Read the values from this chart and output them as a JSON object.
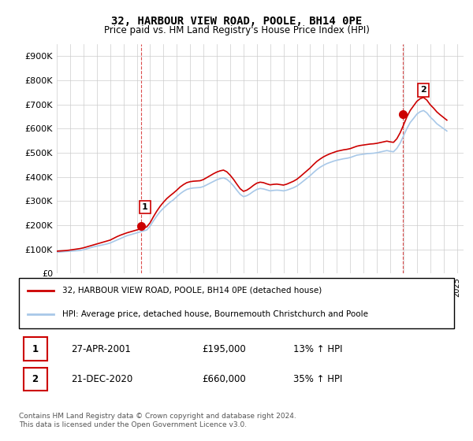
{
  "title": "32, HARBOUR VIEW ROAD, POOLE, BH14 0PE",
  "subtitle": "Price paid vs. HM Land Registry's House Price Index (HPI)",
  "ylim": [
    0,
    950000
  ],
  "yticks": [
    0,
    100000,
    200000,
    300000,
    400000,
    500000,
    600000,
    700000,
    800000,
    900000
  ],
  "ytick_labels": [
    "£0",
    "£100K",
    "£200K",
    "£300K",
    "£400K",
    "£500K",
    "£600K",
    "£700K",
    "£800K",
    "£900K"
  ],
  "sale1": {
    "date": 2001.32,
    "price": 195000,
    "label": "1",
    "pct": "13%",
    "direction": "↑"
  },
  "sale2": {
    "date": 2020.97,
    "price": 660000,
    "label": "2",
    "pct": "35%",
    "direction": "↑"
  },
  "legend_line1": "32, HARBOUR VIEW ROAD, POOLE, BH14 0PE (detached house)",
  "legend_line2": "HPI: Average price, detached house, Bournemouth Christchurch and Poole",
  "table_row1": [
    "1",
    "27-APR-2001",
    "£195,000",
    "13% ↑ HPI"
  ],
  "table_row2": [
    "2",
    "21-DEC-2020",
    "£660,000",
    "35% ↑ HPI"
  ],
  "footnote1": "Contains HM Land Registry data © Crown copyright and database right 2024.",
  "footnote2": "This data is licensed under the Open Government Licence v3.0.",
  "hpi_color": "#a8c8e8",
  "price_color": "#cc0000",
  "background_color": "#ffffff",
  "grid_color": "#cccccc",
  "hpi_data": {
    "years": [
      1995.0,
      1995.25,
      1995.5,
      1995.75,
      1996.0,
      1996.25,
      1996.5,
      1996.75,
      1997.0,
      1997.25,
      1997.5,
      1997.75,
      1998.0,
      1998.25,
      1998.5,
      1998.75,
      1999.0,
      1999.25,
      1999.5,
      1999.75,
      2000.0,
      2000.25,
      2000.5,
      2000.75,
      2001.0,
      2001.25,
      2001.5,
      2001.75,
      2002.0,
      2002.25,
      2002.5,
      2002.75,
      2003.0,
      2003.25,
      2003.5,
      2003.75,
      2004.0,
      2004.25,
      2004.5,
      2004.75,
      2005.0,
      2005.25,
      2005.5,
      2005.75,
      2006.0,
      2006.25,
      2006.5,
      2006.75,
      2007.0,
      2007.25,
      2007.5,
      2007.75,
      2008.0,
      2008.25,
      2008.5,
      2008.75,
      2009.0,
      2009.25,
      2009.5,
      2009.75,
      2010.0,
      2010.25,
      2010.5,
      2010.75,
      2011.0,
      2011.25,
      2011.5,
      2011.75,
      2012.0,
      2012.25,
      2012.5,
      2012.75,
      2013.0,
      2013.25,
      2013.5,
      2013.75,
      2014.0,
      2014.25,
      2014.5,
      2014.75,
      2015.0,
      2015.25,
      2015.5,
      2015.75,
      2016.0,
      2016.25,
      2016.5,
      2016.75,
      2017.0,
      2017.25,
      2017.5,
      2017.75,
      2018.0,
      2018.25,
      2018.5,
      2018.75,
      2019.0,
      2019.25,
      2019.5,
      2019.75,
      2020.0,
      2020.25,
      2020.5,
      2020.75,
      2021.0,
      2021.25,
      2021.5,
      2021.75,
      2022.0,
      2022.25,
      2022.5,
      2022.75,
      2023.0,
      2023.25,
      2023.5,
      2023.75,
      2024.0,
      2024.25
    ],
    "values": [
      88000,
      89000,
      90000,
      91000,
      92000,
      93000,
      94000,
      95000,
      98000,
      102000,
      106000,
      110000,
      113000,
      116000,
      119000,
      122000,
      126000,
      132000,
      138000,
      144000,
      150000,
      156000,
      160000,
      164000,
      168000,
      172000,
      176000,
      180000,
      196000,
      218000,
      238000,
      256000,
      270000,
      283000,
      295000,
      305000,
      318000,
      330000,
      340000,
      348000,
      352000,
      354000,
      355000,
      356000,
      360000,
      367000,
      374000,
      381000,
      388000,
      393000,
      396000,
      390000,
      378000,
      363000,
      345000,
      328000,
      318000,
      322000,
      330000,
      340000,
      348000,
      352000,
      350000,
      346000,
      342000,
      344000,
      345000,
      344000,
      342000,
      345000,
      350000,
      355000,
      362000,
      372000,
      383000,
      394000,
      405000,
      418000,
      430000,
      440000,
      448000,
      455000,
      460000,
      465000,
      469000,
      472000,
      475000,
      477000,
      480000,
      485000,
      490000,
      492000,
      494000,
      496000,
      497000,
      498000,
      500000,
      503000,
      506000,
      509000,
      506000,
      504000,
      518000,
      540000,
      570000,
      600000,
      625000,
      642000,
      660000,
      670000,
      675000,
      665000,
      648000,
      635000,
      620000,
      610000,
      600000,
      590000
    ]
  },
  "price_data": {
    "years": [
      1995.0,
      1995.25,
      1995.5,
      1995.75,
      1996.0,
      1996.25,
      1996.5,
      1996.75,
      1997.0,
      1997.25,
      1997.5,
      1997.75,
      1998.0,
      1998.25,
      1998.5,
      1998.75,
      1999.0,
      1999.25,
      1999.5,
      1999.75,
      2000.0,
      2000.25,
      2000.5,
      2000.75,
      2001.0,
      2001.25,
      2001.5,
      2001.75,
      2002.0,
      2002.25,
      2002.5,
      2002.75,
      2003.0,
      2003.25,
      2003.5,
      2003.75,
      2004.0,
      2004.25,
      2004.5,
      2004.75,
      2005.0,
      2005.25,
      2005.5,
      2005.75,
      2006.0,
      2006.25,
      2006.5,
      2006.75,
      2007.0,
      2007.25,
      2007.5,
      2007.75,
      2008.0,
      2008.25,
      2008.5,
      2008.75,
      2009.0,
      2009.25,
      2009.5,
      2009.75,
      2010.0,
      2010.25,
      2010.5,
      2010.75,
      2011.0,
      2011.25,
      2011.5,
      2011.75,
      2012.0,
      2012.25,
      2012.5,
      2012.75,
      2013.0,
      2013.25,
      2013.5,
      2013.75,
      2014.0,
      2014.25,
      2014.5,
      2014.75,
      2015.0,
      2015.25,
      2015.5,
      2015.75,
      2016.0,
      2016.25,
      2016.5,
      2016.75,
      2017.0,
      2017.25,
      2017.5,
      2017.75,
      2018.0,
      2018.25,
      2018.5,
      2018.75,
      2019.0,
      2019.25,
      2019.5,
      2019.75,
      2020.0,
      2020.25,
      2020.5,
      2020.75,
      2021.0,
      2021.25,
      2021.5,
      2021.75,
      2022.0,
      2022.25,
      2022.5,
      2022.75,
      2023.0,
      2023.25,
      2023.5,
      2023.75,
      2024.0,
      2024.25
    ],
    "values": [
      92000,
      93000,
      94000,
      95000,
      97000,
      99000,
      101000,
      103000,
      106000,
      110000,
      114000,
      118000,
      122000,
      126000,
      130000,
      134000,
      138000,
      145000,
      152000,
      158000,
      163000,
      168000,
      172000,
      176000,
      180000,
      184000,
      188000,
      193000,
      210000,
      235000,
      258000,
      278000,
      295000,
      310000,
      322000,
      333000,
      345000,
      358000,
      368000,
      376000,
      380000,
      382000,
      383000,
      384000,
      389000,
      397000,
      405000,
      413000,
      420000,
      425000,
      428000,
      421000,
      407000,
      390000,
      370000,
      351000,
      340000,
      345000,
      354000,
      365000,
      374000,
      378000,
      376000,
      371000,
      367000,
      369000,
      370000,
      368000,
      366000,
      370000,
      376000,
      382000,
      390000,
      401000,
      413000,
      425000,
      437000,
      451000,
      464000,
      474000,
      483000,
      490000,
      496000,
      501000,
      506000,
      509000,
      512000,
      514000,
      517000,
      522000,
      527000,
      530000,
      532000,
      534000,
      536000,
      537000,
      539000,
      542000,
      545000,
      548000,
      545000,
      543000,
      558000,
      583000,
      615000,
      648000,
      675000,
      694000,
      713000,
      724000,
      729000,
      718000,
      699000,
      685000,
      669000,
      657000,
      646000,
      635000
    ]
  }
}
